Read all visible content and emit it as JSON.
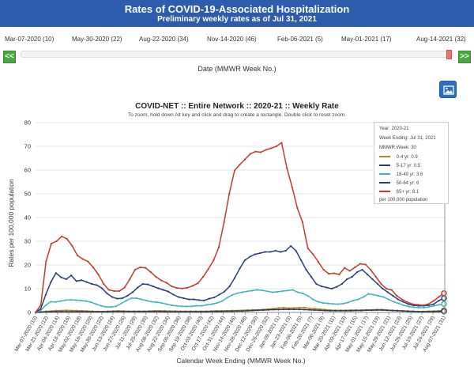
{
  "header": {
    "title": "Rates of COVID-19-Associated Hospitalization",
    "subtitle": "Preliminary weekly rates as of Jul 31, 2021"
  },
  "slider": {
    "dates": [
      "Mar-07-2020 (10)",
      "May-30-2020 (22)",
      "Aug-22-2020 (34)",
      "Nov-14-2020 (46)",
      "Feb-06-2021 (5)",
      "May-01-2021 (17)",
      "Aug-14-2021 (32)"
    ],
    "prev_label": "<<",
    "next_label": ">>",
    "label": "Date (MMWR Week No.)",
    "position": 0.97
  },
  "image_button_icon": "image-icon",
  "legend": {
    "year": "Year: 2020-21",
    "week_ending": "Week Ending: Jul 31, 2021",
    "mmwr_week": "MMWR Week: 30",
    "footer": "per 100,000 population",
    "items": [
      {
        "label": "0-4 yr:",
        "value": "0.9",
        "color": "#b8862b"
      },
      {
        "label": "5-17 yr:",
        "value": "0.5",
        "color": "#2b3a4e"
      },
      {
        "label": "18-49 yr:",
        "value": "3.6",
        "color": "#3fb4bd"
      },
      {
        "label": "50-64 yr:",
        "value": "6",
        "color": "#2a3f79"
      },
      {
        "label": "65+ yr:",
        "value": "8.1",
        "color": "#c8392e"
      }
    ]
  },
  "chart_data": {
    "type": "line",
    "title": "COVID-NET :: Entire Network :: 2020-21 :: Weekly Rate",
    "subtitle": "To zoom, hold down Alt key and click and drag to create a rectangle. Double click to reset zoom.",
    "xlabel": "Calendar Week Ending (MMWR Week No.)",
    "ylabel": "Rates per 100,000 population",
    "ylim": [
      0,
      80
    ],
    "yticks": [
      0,
      10,
      20,
      30,
      40,
      50,
      60,
      70,
      80
    ],
    "x_tick_labels": [
      "Mar-07-2020 (10)",
      "Mar-21-2020 (12)",
      "Apr-04-2020 (14)",
      "Apr-18-2020 (16)",
      "May-02-2020 (18)",
      "May-16-2020 (20)",
      "May-30-2020 (22)",
      "Jun-13-2020 (24)",
      "Jun-27-2020 (26)",
      "Jul-11-2020 (28)",
      "Jul-25-2020 (30)",
      "Aug-08-2020 (32)",
      "Aug-22-2020 (34)",
      "Sep-05-2020 (36)",
      "Sep-19-2020 (38)",
      "Oct-03-2020 (40)",
      "Oct-17-2020 (42)",
      "Oct-31-2020 (44)",
      "Nov-14-2020 (46)",
      "Nov-28-2020 (48)",
      "Dec-12-2020 (50)",
      "Dec-26-2020 (52)",
      "Jan-09-2021 (1)",
      "Jan-23-2021 (3)",
      "Feb-06-2021 (5)",
      "Feb-20-2021 (7)",
      "Mar-06-2021 (9)",
      "Mar-20-2021 (11)",
      "Apr-03-2021 (13)",
      "Apr-17-2021 (15)",
      "May-01-2021 (17)",
      "May-15-2021 (19)",
      "May-29-2021 (21)",
      "Jun-12-2021 (23)",
      "Jun-26-2021 (25)",
      "Jul-10-2021 (27)",
      "Jul-24-2021 (29)",
      "Aug-07-2021 (31)"
    ],
    "series": [
      {
        "name": "0-4 yr",
        "color": "#b8862b",
        "values": [
          0,
          0.2,
          0.5,
          0.6,
          0.8,
          0.8,
          0.9,
          0.8,
          0.8,
          0.7,
          0.6,
          0.5,
          0.4,
          0.4,
          0.5,
          0.6,
          0.7,
          0.6,
          0.5,
          0.5,
          0.5,
          0.5,
          0.6,
          0.7,
          0.7,
          0.7,
          0.6,
          0.6,
          0.5,
          0.5,
          0.5,
          0.5,
          0.5,
          0.5,
          0.6,
          0.7,
          0.7,
          0.7,
          0.8,
          0.8,
          0.9,
          1,
          1.1,
          1.1,
          1.2,
          1.4,
          1.6,
          1.9,
          2.0,
          1.8,
          1.9,
          2.0,
          2.1,
          1.7,
          1.6,
          1.4,
          1.2,
          1.0,
          0.9,
          0.9,
          0.9,
          1.0,
          1.0,
          1.0,
          1.1,
          1.1,
          1.2,
          1.2,
          1.0,
          0.9,
          0.8,
          0.7,
          0.6,
          0.5,
          0.4,
          0.4,
          0.5,
          0.6,
          0.7,
          0.9
        ]
      },
      {
        "name": "5-17 yr",
        "color": "#2b3a4e",
        "values": [
          0,
          0.1,
          0.2,
          0.3,
          0.3,
          0.3,
          0.3,
          0.3,
          0.3,
          0.3,
          0.3,
          0.3,
          0.3,
          0.3,
          0.3,
          0.4,
          0.4,
          0.4,
          0.4,
          0.4,
          0.4,
          0.4,
          0.4,
          0.4,
          0.4,
          0.3,
          0.3,
          0.3,
          0.3,
          0.3,
          0.3,
          0.3,
          0.3,
          0.3,
          0.4,
          0.4,
          0.4,
          0.5,
          0.5,
          0.6,
          0.6,
          0.7,
          0.8,
          0.9,
          1.0,
          1.1,
          1.2,
          1.2,
          1.3,
          1.3,
          1.3,
          1.3,
          1.2,
          1.1,
          1.0,
          0.9,
          0.8,
          0.7,
          0.7,
          0.7,
          0.7,
          0.7,
          0.8,
          0.8,
          0.9,
          0.9,
          1.0,
          1.0,
          0.9,
          0.8,
          0.7,
          0.6,
          0.5,
          0.4,
          0.3,
          0.3,
          0.3,
          0.3,
          0.4,
          0.5
        ]
      },
      {
        "name": "18-49 yr",
        "color": "#3fb4bd",
        "values": [
          0,
          0.8,
          3,
          4.5,
          4.4,
          4.8,
          5.2,
          5.3,
          5.2,
          5.0,
          4.8,
          4.3,
          3.5,
          2.8,
          2.3,
          2.3,
          2.6,
          3.8,
          5.0,
          6.0,
          6.0,
          5.5,
          5.0,
          4.5,
          4.3,
          4.0,
          3.5,
          3.0,
          2.8,
          2.6,
          2.5,
          2.6,
          2.8,
          2.8,
          3.2,
          3.5,
          4.0,
          4.8,
          6.2,
          7.3,
          8.1,
          8.5,
          8.9,
          9.2,
          9.5,
          9.3,
          8.9,
          8.5,
          8.7,
          9.0,
          9.2,
          9.5,
          8.5,
          8.0,
          7.0,
          5.5,
          4.5,
          4.0,
          3.8,
          3.6,
          3.5,
          3.7,
          4.2,
          5.0,
          5.5,
          6.5,
          7.8,
          7.5,
          7.0,
          6.5,
          5.5,
          4.5,
          3.8,
          3.0,
          2.5,
          2.2,
          2.0,
          2.0,
          2.3,
          2.8,
          3.2,
          3.6
        ]
      },
      {
        "name": "50-64 yr",
        "color": "#2a3f79",
        "values": [
          0,
          1.5,
          7.5,
          12.8,
          16.6,
          14.8,
          14.0,
          15.6,
          13.2,
          13.6,
          12.8,
          12.0,
          11.5,
          10.2,
          8.0,
          6.5,
          5.8,
          6.0,
          7.0,
          8.5,
          10.5,
          12.0,
          11.8,
          11.0,
          10.2,
          9.5,
          8.8,
          7.5,
          6.5,
          6.0,
          5.5,
          5.5,
          5.2,
          5.0,
          5.8,
          6.3,
          7.5,
          8.8,
          11.0,
          14.5,
          18.5,
          22.0,
          23.5,
          24.5,
          25.0,
          25.5,
          25.5,
          26.0,
          25.5,
          26.0,
          28.0,
          26.0,
          22.0,
          18.0,
          15.0,
          12.0,
          11.0,
          10.5,
          10.0,
          10.8,
          12.0,
          14.0,
          15.0,
          17.0,
          18.0,
          16.0,
          14.0,
          12.0,
          10.0,
          8.5,
          7.0,
          5.5,
          4.5,
          3.5,
          3.0,
          2.8,
          2.8,
          3.0,
          3.5,
          5.0,
          6.0
        ]
      },
      {
        "name": "65+ yr",
        "color": "#c8392e",
        "values": [
          0,
          3,
          21.5,
          29,
          30,
          32,
          31,
          28,
          24,
          22.5,
          21.5,
          19,
          16,
          12,
          9.5,
          9.0,
          9.0,
          10.5,
          14,
          18,
          19,
          18.8,
          17,
          15,
          13.5,
          12.5,
          11,
          10.3,
          10.1,
          10.4,
          11.2,
          12.3,
          15,
          18.3,
          22,
          27.5,
          38,
          50,
          59.8,
          62.3,
          64.5,
          66.8,
          67.8,
          67.5,
          68.5,
          69.2,
          70,
          71.5,
          60.8,
          52.8,
          44,
          38,
          27,
          24.5,
          21.3,
          18,
          16.3,
          16.5,
          16.0,
          18.8,
          17.5,
          19,
          20.5,
          20.2,
          18,
          15,
          12,
          10,
          9.5,
          7,
          5.5,
          4.3,
          3.5,
          3.2,
          3.0,
          3.5,
          4.8,
          6.5,
          8.1
        ]
      }
    ]
  }
}
